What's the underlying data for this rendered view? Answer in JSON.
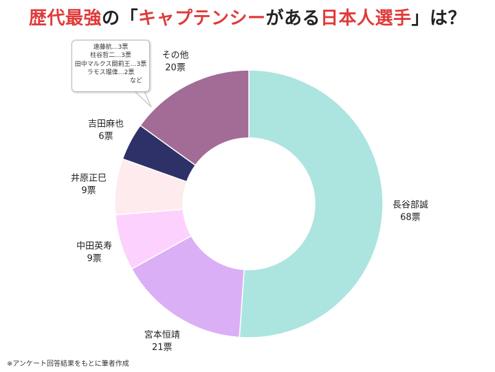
{
  "title": {
    "part1": "歴代最強",
    "part2": "の「",
    "part3": "キャプテンシー",
    "part4": "がある",
    "part5": "日本人選手",
    "part6": "」は？"
  },
  "footnote": "※アンケート回答結果をもとに筆者作成",
  "callout": {
    "lines": [
      "遠藤航…3票",
      "柱谷哲二…3票",
      "田中マルクス闘莉王…3票",
      "ラモス瑠偉…2票"
    ],
    "more": "など"
  },
  "chart_data": {
    "type": "pie",
    "donut": true,
    "unit": "票",
    "slices": [
      {
        "label": "長谷部誠",
        "value": 68,
        "value_label": "68票",
        "color": "#ace4e0"
      },
      {
        "label": "宮本恒靖",
        "value": 21,
        "value_label": "21票",
        "color": "#dbaff5"
      },
      {
        "label": "中田英寿",
        "value": 9,
        "value_label": "9票",
        "color": "#fdd1fd"
      },
      {
        "label": "井原正巳",
        "value": 9,
        "value_label": "9票",
        "color": "#fdebed"
      },
      {
        "label": "吉田麻也",
        "value": 6,
        "value_label": "6票",
        "color": "#2e3168"
      },
      {
        "label": "その他",
        "value": 20,
        "value_label": "20票",
        "color": "#a26c96"
      }
    ]
  }
}
